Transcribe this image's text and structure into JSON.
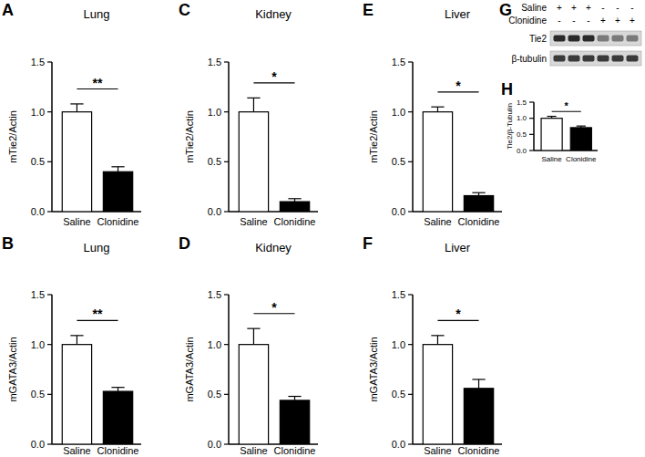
{
  "chart_data": [
    {
      "type": "bar",
      "panel_label": "A",
      "title": "Lung",
      "y_label": "mTie2/Actin",
      "categories": [
        "Saline",
        "Clonidine"
      ],
      "values": [
        1.0,
        0.4
      ],
      "errors": [
        0.08,
        0.05
      ],
      "colors": [
        "#ffffff",
        "#000000"
      ],
      "significance": "**",
      "ylim": [
        0,
        1.5
      ],
      "yticks": [
        {
          "value": 0,
          "label": "0.0"
        },
        0.5,
        {
          "value": 1,
          "label": "1.0"
        },
        1.5
      ],
      "grid": false
    },
    {
      "type": "bar",
      "panel_label": "B",
      "title": "Lung",
      "y_label": "mGATA3/Actin",
      "categories": [
        "Saline",
        "Clonidine"
      ],
      "values": [
        1.0,
        0.53
      ],
      "errors": [
        0.09,
        0.04
      ],
      "colors": [
        "#ffffff",
        "#000000"
      ],
      "significance": "**",
      "ylim": [
        0,
        1.5
      ],
      "yticks": [
        {
          "value": 0,
          "label": "0.0"
        },
        0.5,
        {
          "value": 1,
          "label": "1.0"
        },
        1.5
      ],
      "grid": false
    },
    {
      "type": "bar",
      "panel_label": "C",
      "title": "Kidney",
      "y_label": "mTie2/Actin",
      "categories": [
        "Saline",
        "Clonidine"
      ],
      "values": [
        1.0,
        0.1
      ],
      "errors": [
        0.14,
        0.03
      ],
      "colors": [
        "#ffffff",
        "#000000"
      ],
      "significance": "*",
      "ylim": [
        0,
        1.5
      ],
      "yticks": [
        {
          "value": 0,
          "label": "0.0"
        },
        0.5,
        {
          "value": 1,
          "label": "1.0"
        },
        1.5
      ],
      "grid": false
    },
    {
      "type": "bar",
      "panel_label": "D",
      "title": "Kidney",
      "y_label": "mGATA3/Actin",
      "categories": [
        "Saline",
        "Clonidine"
      ],
      "values": [
        1.0,
        0.44
      ],
      "errors": [
        0.16,
        0.04
      ],
      "colors": [
        "#ffffff",
        "#000000"
      ],
      "significance": "*",
      "ylim": [
        0,
        1.5
      ],
      "yticks": [
        {
          "value": 0,
          "label": "0.0"
        },
        0.5,
        {
          "value": 1,
          "label": "1.0"
        },
        1.5
      ],
      "grid": false
    },
    {
      "type": "bar",
      "panel_label": "E",
      "title": "Liver",
      "y_label": "mTie2/Actin",
      "categories": [
        "Saline",
        "Clonidine"
      ],
      "values": [
        1.0,
        0.16
      ],
      "errors": [
        0.05,
        0.03
      ],
      "colors": [
        "#ffffff",
        "#000000"
      ],
      "significance": "*",
      "ylim": [
        0,
        1.5
      ],
      "yticks": [
        {
          "value": 0,
          "label": "0.0"
        },
        0.5,
        {
          "value": 1,
          "label": "1.0"
        },
        1.5
      ],
      "grid": false
    },
    {
      "type": "bar",
      "panel_label": "F",
      "title": "Liver",
      "y_label": "mGATA3/Actin",
      "categories": [
        "Saline",
        "Clonidine"
      ],
      "values": [
        1.0,
        0.56
      ],
      "errors": [
        0.09,
        0.09
      ],
      "colors": [
        "#ffffff",
        "#000000"
      ],
      "significance": "*",
      "ylim": [
        0,
        1.5
      ],
      "yticks": [
        {
          "value": 0,
          "label": "0.0"
        },
        0.5,
        {
          "value": 1,
          "label": "1.0"
        },
        1.5
      ],
      "grid": false
    },
    {
      "type": "bar",
      "panel_label": "H",
      "y_label": "Tie2/β-Tubulin",
      "categories": [
        "Saline",
        "Clonidine"
      ],
      "values": [
        1.0,
        0.71
      ],
      "errors": [
        0.06,
        0.05
      ],
      "colors": [
        "#ffffff",
        "#000000"
      ],
      "significance": "*",
      "ylim": [
        0,
        1.5
      ],
      "yticks": [
        {
          "value": 0,
          "label": "0.0"
        },
        0.5,
        {
          "value": 1,
          "label": "1.0"
        },
        1.5
      ],
      "grid": false
    }
  ],
  "blot": {
    "panel_label": "G",
    "conditions": [
      {
        "name": "Saline",
        "signs": [
          "+",
          "+",
          "+",
          "-",
          "-",
          "-"
        ]
      },
      {
        "name": "Clonidine",
        "signs": [
          "-",
          "-",
          "-",
          "+",
          "+",
          "+"
        ]
      }
    ],
    "bands": [
      "Tie2",
      "β-tubulin"
    ]
  }
}
